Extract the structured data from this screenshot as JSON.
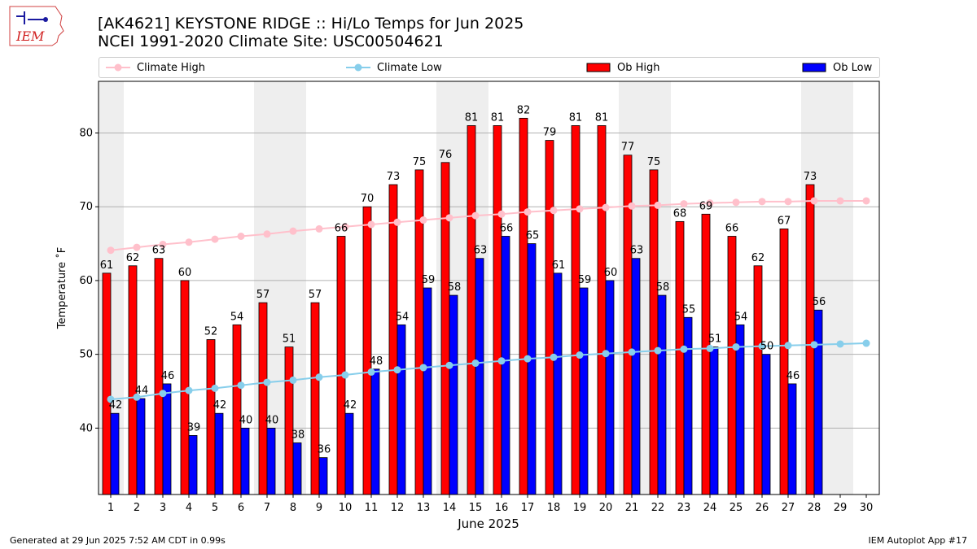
{
  "header": {
    "logo_text": "IEM",
    "title_line1": "[AK4621] KEYSTONE RIDGE :: Hi/Lo Temps for Jun 2025",
    "title_line2": "NCEI 1991-2020 Climate Site: USC00504621"
  },
  "footer": {
    "left": "Generated at 29 Jun 2025 7:52 AM CDT in 0.99s",
    "right": "IEM Autoplot App #17"
  },
  "legend": {
    "climate_high": "Climate High",
    "climate_low": "Climate Low",
    "ob_high": "Ob High",
    "ob_low": "Ob Low"
  },
  "colors": {
    "ob_high": "#ff0000",
    "ob_low": "#0000ff",
    "climate_high": "#ffc0cb",
    "climate_low": "#87ceeb",
    "weekend_shade": "#eeeeee",
    "grid": "#b0b0b0"
  },
  "chart_data": {
    "type": "bar",
    "xlabel": "June 2025",
    "ylabel": "Temperature ˚F",
    "ylim": [
      31,
      87
    ],
    "yticks": [
      40,
      50,
      60,
      70,
      80
    ],
    "grid": "horizontal",
    "legend_placement": "top",
    "categories": [
      "1",
      "2",
      "3",
      "4",
      "5",
      "6",
      "7",
      "8",
      "9",
      "10",
      "11",
      "12",
      "13",
      "14",
      "15",
      "16",
      "17",
      "18",
      "19",
      "20",
      "21",
      "22",
      "23",
      "24",
      "25",
      "26",
      "27",
      "28",
      "29",
      "30"
    ],
    "shaded_days": [
      1,
      7,
      8,
      14,
      15,
      21,
      22,
      28,
      29
    ],
    "series": [
      {
        "name": "Ob High",
        "kind": "bar",
        "values": [
          61,
          62,
          63,
          60,
          52,
          54,
          57,
          51,
          57,
          66,
          70,
          73,
          75,
          76,
          81,
          81,
          82,
          79,
          81,
          81,
          77,
          75,
          68,
          69,
          66,
          62,
          67,
          73,
          null,
          null
        ]
      },
      {
        "name": "Ob Low",
        "kind": "bar",
        "values": [
          42,
          44,
          46,
          39,
          42,
          40,
          40,
          38,
          36,
          42,
          48,
          54,
          59,
          58,
          63,
          66,
          65,
          61,
          59,
          60,
          63,
          58,
          55,
          51,
          54,
          50,
          46,
          56,
          null,
          null
        ]
      },
      {
        "name": "Climate High",
        "kind": "line",
        "values": [
          64.1,
          64.5,
          64.9,
          65.2,
          65.6,
          66.0,
          66.3,
          66.7,
          67.0,
          67.3,
          67.6,
          67.9,
          68.2,
          68.5,
          68.8,
          69.0,
          69.3,
          69.5,
          69.7,
          69.9,
          70.1,
          70.2,
          70.4,
          70.5,
          70.6,
          70.7,
          70.7,
          70.8,
          70.8,
          70.8
        ]
      },
      {
        "name": "Climate Low",
        "kind": "line",
        "values": [
          43.9,
          44.2,
          44.7,
          45.1,
          45.4,
          45.8,
          46.2,
          46.5,
          46.9,
          47.2,
          47.6,
          47.9,
          48.2,
          48.5,
          48.8,
          49.1,
          49.4,
          49.6,
          49.9,
          50.1,
          50.3,
          50.5,
          50.7,
          50.8,
          51.0,
          51.1,
          51.2,
          51.3,
          51.4,
          51.5
        ]
      }
    ]
  }
}
